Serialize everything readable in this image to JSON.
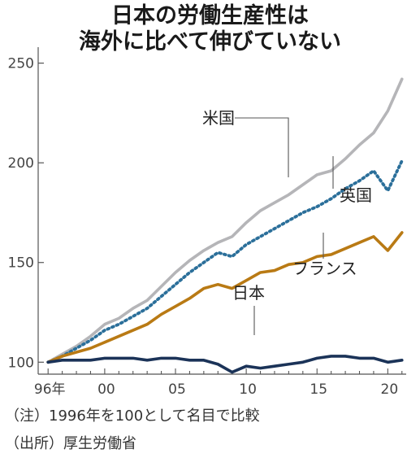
{
  "chart_data": {
    "type": "line",
    "title": [
      "日本の労働生産性は",
      "海外に比べて伸びていない"
    ],
    "x": [
      1996,
      1997,
      1998,
      1999,
      2000,
      2001,
      2002,
      2003,
      2004,
      2005,
      2006,
      2007,
      2008,
      2009,
      2010,
      2011,
      2012,
      2013,
      2014,
      2015,
      2016,
      2017,
      2018,
      2019,
      2020,
      2021
    ],
    "x_ticks": [
      {
        "value": 1996,
        "label": "96年"
      },
      {
        "value": 2000,
        "label": "00"
      },
      {
        "value": 2005,
        "label": "05"
      },
      {
        "value": 2010,
        "label": "10"
      },
      {
        "value": 2015,
        "label": "15"
      },
      {
        "value": 2020,
        "label": "20"
      }
    ],
    "y_ticks": [
      100,
      150,
      200,
      250
    ],
    "ylim": [
      94,
      258
    ],
    "series": [
      {
        "name": "米国",
        "color": "#b5b5b8",
        "style": "solid",
        "values": [
          100,
          104,
          108,
          113,
          119,
          122,
          127,
          131,
          138,
          145,
          151,
          156,
          160,
          163,
          170,
          176,
          180,
          184,
          189,
          194,
          196,
          202,
          209,
          215,
          226,
          242
        ]
      },
      {
        "name": "英国",
        "color": "#2b6f9a",
        "style": "dotted",
        "values": [
          100,
          103,
          107,
          111,
          116,
          119,
          123,
          127,
          133,
          139,
          145,
          150,
          155,
          153,
          159,
          163,
          167,
          171,
          175,
          178,
          182,
          187,
          191,
          196,
          186,
          201
        ]
      },
      {
        "name": "フランス",
        "color": "#b97a14",
        "style": "solid",
        "values": [
          100,
          103,
          105,
          107,
          110,
          113,
          116,
          119,
          124,
          128,
          132,
          137,
          139,
          137,
          141,
          145,
          146,
          149,
          150,
          153,
          154,
          157,
          160,
          163,
          156,
          165
        ]
      },
      {
        "name": "日本",
        "color": "#1b3358",
        "style": "solid",
        "values": [
          100,
          101,
          101,
          101,
          102,
          102,
          102,
          101,
          102,
          102,
          101,
          101,
          99,
          95,
          98,
          97,
          98,
          99,
          100,
          102,
          103,
          103,
          102,
          102,
          100,
          101
        ]
      }
    ]
  },
  "notes": [
    "（注）1996年を100として名目で比較",
    "（出所）厚生労働省"
  ]
}
